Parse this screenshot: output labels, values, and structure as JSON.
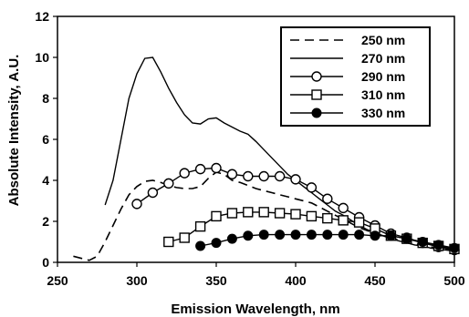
{
  "chart_data": {
    "type": "line",
    "title": "",
    "xlabel": "Emission Wavelength, nm",
    "ylabel": "Absolute Intensity, A.U.",
    "xlim": [
      250,
      500
    ],
    "ylim": [
      0,
      12
    ],
    "xticks": [
      250,
      300,
      350,
      400,
      450,
      500
    ],
    "yticks": [
      0,
      2,
      4,
      6,
      8,
      10,
      12
    ],
    "grid": false,
    "legend": "top-right",
    "series": [
      {
        "name": "250 nm",
        "style": "dashed",
        "marker": "none",
        "points": [
          [
            260,
            0.3
          ],
          [
            270,
            0.1
          ],
          [
            275,
            0.3
          ],
          [
            280,
            1.0
          ],
          [
            285,
            1.8
          ],
          [
            290,
            2.6
          ],
          [
            295,
            3.3
          ],
          [
            300,
            3.7
          ],
          [
            305,
            3.95
          ],
          [
            310,
            4.0
          ],
          [
            315,
            3.9
          ],
          [
            320,
            3.75
          ],
          [
            325,
            3.65
          ],
          [
            330,
            3.6
          ],
          [
            335,
            3.6
          ],
          [
            340,
            3.7
          ],
          [
            345,
            4.1
          ],
          [
            350,
            4.4
          ],
          [
            355,
            4.3
          ],
          [
            360,
            4.0
          ],
          [
            365,
            3.9
          ],
          [
            370,
            3.75
          ],
          [
            375,
            3.6
          ],
          [
            380,
            3.5
          ],
          [
            385,
            3.4
          ],
          [
            390,
            3.3
          ],
          [
            395,
            3.2
          ],
          [
            400,
            3.1
          ],
          [
            405,
            3.0
          ],
          [
            410,
            2.9
          ],
          [
            415,
            2.7
          ],
          [
            420,
            2.5
          ],
          [
            425,
            2.3
          ],
          [
            430,
            2.1
          ],
          [
            435,
            1.9
          ],
          [
            440,
            1.7
          ],
          [
            445,
            1.55
          ],
          [
            450,
            1.4
          ],
          [
            455,
            1.3
          ],
          [
            460,
            1.2
          ],
          [
            465,
            1.1
          ],
          [
            470,
            1.0
          ],
          [
            475,
            0.9
          ],
          [
            480,
            0.85
          ],
          [
            485,
            0.75
          ],
          [
            490,
            0.7
          ],
          [
            495,
            0.65
          ],
          [
            500,
            0.6
          ]
        ]
      },
      {
        "name": "270 nm",
        "style": "solid",
        "marker": "none",
        "points": [
          [
            280,
            2.8
          ],
          [
            285,
            4.0
          ],
          [
            290,
            6.0
          ],
          [
            295,
            8.0
          ],
          [
            300,
            9.2
          ],
          [
            305,
            9.95
          ],
          [
            310,
            10.0
          ],
          [
            315,
            9.3
          ],
          [
            320,
            8.5
          ],
          [
            325,
            7.8
          ],
          [
            330,
            7.2
          ],
          [
            335,
            6.8
          ],
          [
            340,
            6.75
          ],
          [
            345,
            7.0
          ],
          [
            350,
            7.05
          ],
          [
            355,
            6.8
          ],
          [
            360,
            6.6
          ],
          [
            365,
            6.4
          ],
          [
            370,
            6.25
          ],
          [
            375,
            5.9
          ],
          [
            380,
            5.5
          ],
          [
            385,
            5.1
          ],
          [
            390,
            4.7
          ],
          [
            395,
            4.3
          ],
          [
            400,
            4.0
          ],
          [
            405,
            3.7
          ],
          [
            410,
            3.4
          ],
          [
            415,
            3.1
          ],
          [
            420,
            2.8
          ],
          [
            425,
            2.5
          ],
          [
            430,
            2.3
          ],
          [
            435,
            2.05
          ],
          [
            440,
            1.8
          ],
          [
            445,
            1.6
          ],
          [
            450,
            1.45
          ],
          [
            455,
            1.3
          ],
          [
            460,
            1.15
          ],
          [
            465,
            1.05
          ],
          [
            470,
            0.95
          ],
          [
            475,
            0.85
          ],
          [
            480,
            0.8
          ],
          [
            485,
            0.7
          ],
          [
            490,
            0.65
          ],
          [
            495,
            0.6
          ],
          [
            500,
            0.55
          ]
        ]
      },
      {
        "name": "290 nm",
        "style": "solid",
        "marker": "open-circle",
        "points": [
          [
            300,
            2.85
          ],
          [
            310,
            3.4
          ],
          [
            320,
            3.85
          ],
          [
            330,
            4.35
          ],
          [
            340,
            4.55
          ],
          [
            350,
            4.6
          ],
          [
            360,
            4.3
          ],
          [
            370,
            4.2
          ],
          [
            380,
            4.2
          ],
          [
            390,
            4.2
          ],
          [
            400,
            4.05
          ],
          [
            410,
            3.65
          ],
          [
            420,
            3.1
          ],
          [
            430,
            2.65
          ],
          [
            440,
            2.2
          ],
          [
            450,
            1.8
          ],
          [
            460,
            1.4
          ],
          [
            470,
            1.2
          ],
          [
            480,
            0.95
          ],
          [
            490,
            0.75
          ],
          [
            500,
            0.6
          ]
        ]
      },
      {
        "name": "310 nm",
        "style": "solid",
        "marker": "open-square",
        "points": [
          [
            320,
            1.0
          ],
          [
            330,
            1.2
          ],
          [
            340,
            1.75
          ],
          [
            350,
            2.25
          ],
          [
            360,
            2.4
          ],
          [
            370,
            2.45
          ],
          [
            380,
            2.45
          ],
          [
            390,
            2.4
          ],
          [
            400,
            2.35
          ],
          [
            410,
            2.25
          ],
          [
            420,
            2.15
          ],
          [
            430,
            2.05
          ],
          [
            440,
            1.95
          ],
          [
            450,
            1.65
          ],
          [
            460,
            1.3
          ],
          [
            470,
            1.15
          ],
          [
            480,
            0.95
          ],
          [
            490,
            0.8
          ],
          [
            500,
            0.65
          ]
        ]
      },
      {
        "name": "330 nm",
        "style": "solid",
        "marker": "filled-circle",
        "points": [
          [
            340,
            0.8
          ],
          [
            350,
            0.95
          ],
          [
            360,
            1.15
          ],
          [
            370,
            1.3
          ],
          [
            380,
            1.35
          ],
          [
            390,
            1.35
          ],
          [
            400,
            1.35
          ],
          [
            410,
            1.35
          ],
          [
            420,
            1.35
          ],
          [
            430,
            1.35
          ],
          [
            440,
            1.35
          ],
          [
            450,
            1.3
          ],
          [
            460,
            1.3
          ],
          [
            470,
            1.15
          ],
          [
            480,
            1.0
          ],
          [
            490,
            0.85
          ],
          [
            500,
            0.7
          ]
        ]
      }
    ]
  }
}
